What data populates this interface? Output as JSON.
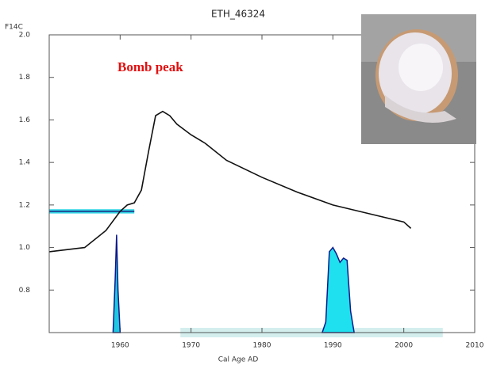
{
  "chart_data": {
    "type": "line",
    "title": "ETH_46324",
    "y_label": "F14C",
    "x_label": "Cal Age AD",
    "annotation": "Bomb peak",
    "xlim": [
      1950,
      2010
    ],
    "xticks": [
      1960,
      1970,
      1980,
      1990,
      2000,
      2010
    ],
    "ylim": [
      0.6,
      2.0
    ],
    "yticks": [
      {
        "value": 2.0,
        "label": "2.0"
      },
      1.8,
      1.6,
      1.4,
      1.2,
      {
        "value": 1.0,
        "label": "1.0"
      },
      0.8
    ],
    "curve": {
      "color": "#111111",
      "x": [
        1950,
        1955,
        1958,
        1960,
        1961,
        1962,
        1963,
        1964,
        1965,
        1966,
        1967,
        1968,
        1970,
        1972,
        1975,
        1980,
        1985,
        1990,
        1995,
        2000,
        2001
      ],
      "y": [
        0.98,
        1.0,
        1.08,
        1.17,
        1.2,
        1.21,
        1.27,
        1.45,
        1.62,
        1.64,
        1.62,
        1.58,
        1.53,
        1.49,
        1.41,
        1.33,
        1.26,
        1.2,
        1.16,
        1.12,
        1.09
      ]
    },
    "measurement": {
      "value": 1.17,
      "error": 0.01,
      "x": [
        1950,
        1962
      ],
      "color": "#1a237e",
      "band_color": "#33d6e6"
    },
    "distributions": [
      {
        "x": [
          1959.0,
          1959.3,
          1959.5,
          1959.7,
          1960.0
        ],
        "y": [
          0.6,
          0.85,
          1.06,
          0.8,
          0.6
        ],
        "color": "#0d1a8c",
        "fill": "#1fc8e0"
      },
      {
        "x": [
          1988.5,
          1989,
          1989.5,
          1990,
          1990.5,
          1991,
          1991.5,
          1992,
          1992.5,
          1993
        ],
        "y": [
          0.6,
          0.65,
          0.98,
          1.0,
          0.97,
          0.93,
          0.95,
          0.94,
          0.7,
          0.6
        ],
        "color": "#0d1a8c",
        "fill": "#1fe0ee"
      }
    ],
    "range": {
      "x": [
        1968.5,
        2005.5
      ],
      "color": "#d4eeee"
    }
  }
}
